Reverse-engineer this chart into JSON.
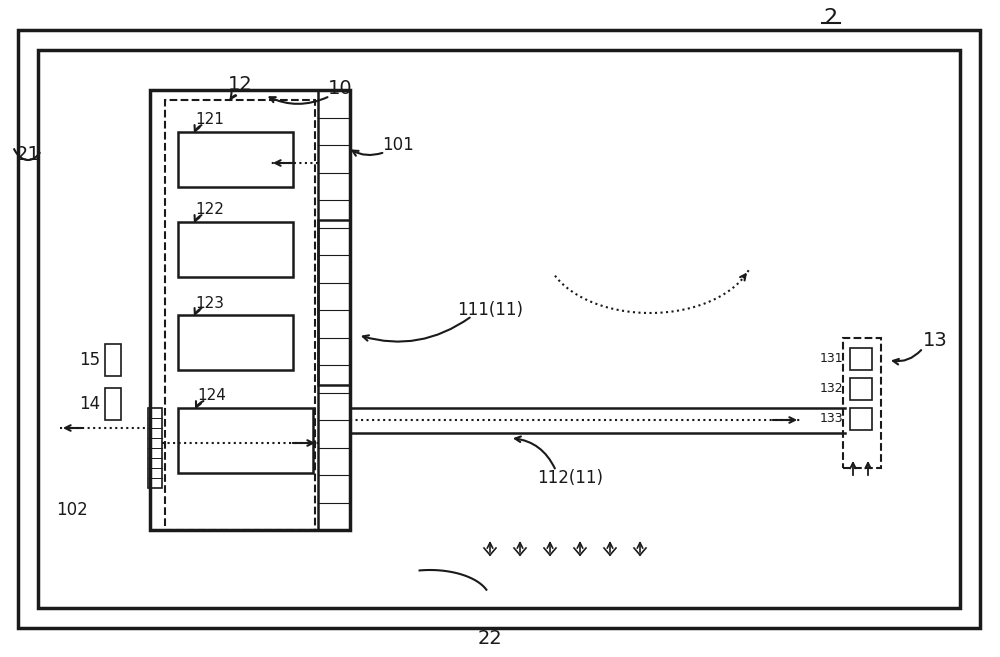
{
  "bg_color": "#ffffff",
  "line_color": "#1a1a1a",
  "fig_width": 10.0,
  "fig_height": 6.57,
  "label_2": "2",
  "label_21": "21",
  "label_22": "22",
  "label_10": "10",
  "label_101": "101",
  "label_102": "102",
  "label_11_111": "111(11)",
  "label_11_112": "112(11)",
  "label_12": "12",
  "label_121": "121",
  "label_122": "122",
  "label_123": "123",
  "label_124": "124",
  "label_13": "13",
  "label_131": "131",
  "label_132": "132",
  "label_133": "133",
  "label_14": "14",
  "label_15": "15"
}
